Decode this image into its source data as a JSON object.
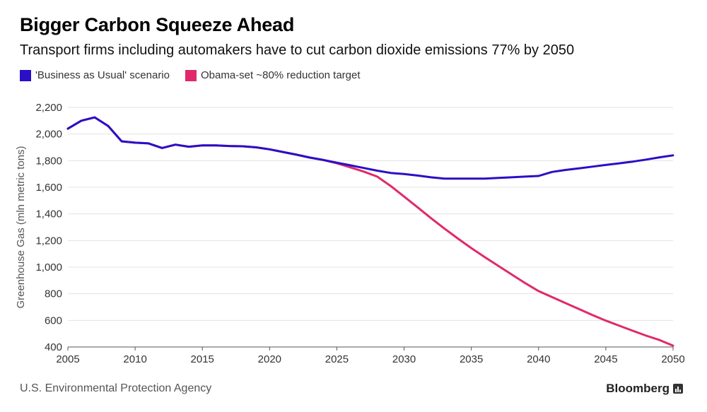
{
  "header": {
    "title": "Bigger Carbon Squeeze Ahead",
    "subtitle": "Transport firms including automakers have to cut carbon dioxide emissions 77% by 2050"
  },
  "footer": {
    "source": "U.S. Environmental Protection Agency",
    "brand": "Bloomberg"
  },
  "chart_data": {
    "type": "line",
    "title": "Bigger Carbon Squeeze Ahead",
    "subtitle": "Transport firms including automakers have to cut carbon dioxide emissions 77% by 2050",
    "xlabel": "",
    "ylabel": "Greenhouse Gas (mln metric tons)",
    "xlim": [
      2005,
      2050
    ],
    "ylim": [
      400,
      2200
    ],
    "xticks": [
      2005,
      2010,
      2015,
      2020,
      2025,
      2030,
      2035,
      2040,
      2045,
      2050
    ],
    "yticks": [
      400,
      600,
      800,
      1000,
      1200,
      1400,
      1600,
      1800,
      2000,
      2200
    ],
    "ytick_labels": [
      "400",
      "600",
      "800",
      "1,000",
      "1,200",
      "1,400",
      "1,600",
      "1,800",
      "2,000",
      "2,200"
    ],
    "grid": "horizontal",
    "legend_position": "top-left",
    "series": [
      {
        "name": "'Business as Usual' scenario",
        "color": "#2a0fc7",
        "x": [
          2005,
          2006,
          2007,
          2008,
          2009,
          2010,
          2011,
          2012,
          2013,
          2014,
          2015,
          2016,
          2017,
          2018,
          2019,
          2020,
          2021,
          2022,
          2023,
          2024,
          2025,
          2026,
          2027,
          2028,
          2029,
          2030,
          2031,
          2032,
          2033,
          2034,
          2035,
          2036,
          2037,
          2038,
          2039,
          2040,
          2041,
          2042,
          2043,
          2044,
          2045,
          2046,
          2047,
          2048,
          2049,
          2050
        ],
        "values": [
          2040,
          2100,
          2125,
          2060,
          1945,
          1935,
          1930,
          1895,
          1920,
          1905,
          1915,
          1915,
          1910,
          1908,
          1900,
          1885,
          1865,
          1845,
          1823,
          1805,
          1785,
          1765,
          1745,
          1725,
          1708,
          1700,
          1688,
          1675,
          1665,
          1665,
          1665,
          1665,
          1670,
          1675,
          1680,
          1685,
          1715,
          1730,
          1742,
          1755,
          1768,
          1780,
          1793,
          1808,
          1825,
          1840
        ]
      },
      {
        "name": "Obama-set ~80% reduction target",
        "color": "#e0296c",
        "x": [
          2005,
          2006,
          2007,
          2008,
          2009,
          2010,
          2011,
          2012,
          2013,
          2014,
          2015,
          2016,
          2017,
          2018,
          2019,
          2020,
          2021,
          2022,
          2023,
          2024,
          2025,
          2026,
          2027,
          2028,
          2029,
          2030,
          2031,
          2032,
          2033,
          2034,
          2035,
          2036,
          2037,
          2038,
          2039,
          2040,
          2041,
          2042,
          2043,
          2044,
          2045,
          2046,
          2047,
          2048,
          2049,
          2050
        ],
        "values": [
          2040,
          2100,
          2125,
          2060,
          1945,
          1935,
          1930,
          1895,
          1920,
          1905,
          1915,
          1915,
          1910,
          1908,
          1900,
          1885,
          1865,
          1845,
          1823,
          1805,
          1780,
          1750,
          1718,
          1680,
          1610,
          1530,
          1450,
          1368,
          1290,
          1215,
          1143,
          1075,
          1010,
          945,
          880,
          820,
          775,
          730,
          685,
          640,
          598,
          560,
          522,
          485,
          452,
          410
        ]
      }
    ]
  }
}
